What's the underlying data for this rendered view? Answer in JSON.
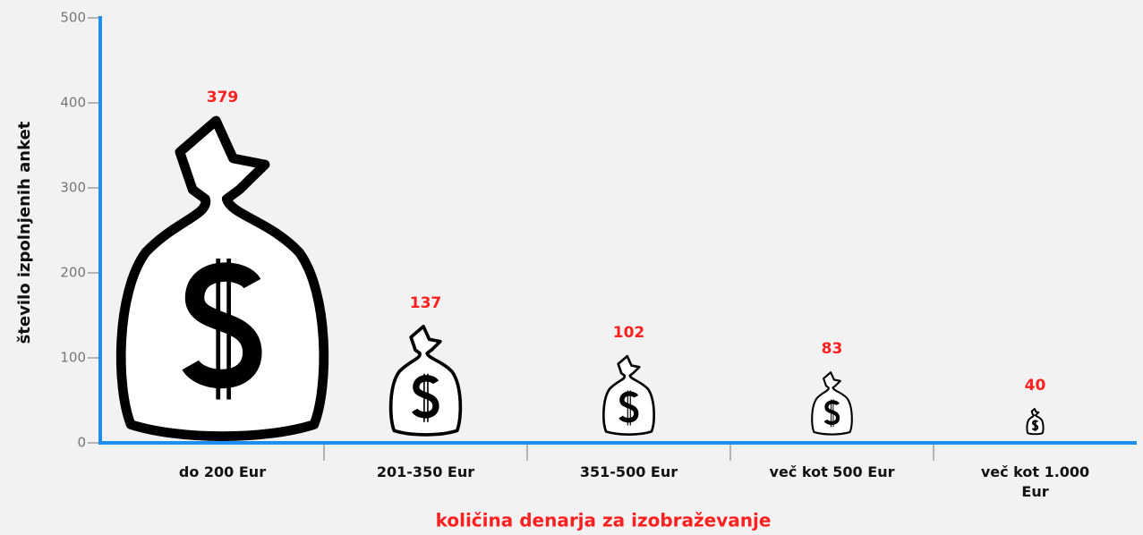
{
  "chart_data": {
    "type": "pictograph",
    "y_label": "število izpolnjenih anket",
    "x_label": "količina denarja za izobraževanje",
    "categories": [
      "do 200 Eur",
      "201-350 Eur",
      "351-500 Eur",
      "več kot 500 Eur",
      "več kot 1.000 Eur"
    ],
    "values": [
      379,
      137,
      102,
      83,
      40
    ],
    "value_label_color": "#ff2020",
    "axis_color": "#1e8fef",
    "ylim": [
      0,
      500
    ],
    "yticks": [
      0,
      100,
      200,
      300,
      400,
      500
    ]
  }
}
